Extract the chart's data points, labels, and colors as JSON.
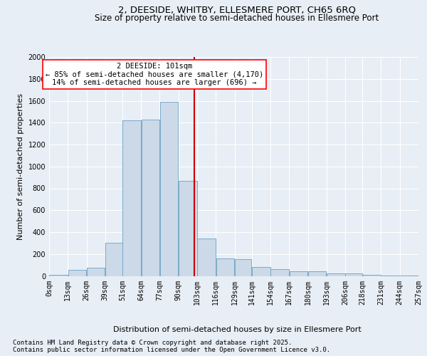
{
  "title": "2, DEESIDE, WHITBY, ELLESMERE PORT, CH65 6RQ",
  "subtitle": "Size of property relative to semi-detached houses in Ellesmere Port",
  "xlabel": "Distribution of semi-detached houses by size in Ellesmere Port",
  "ylabel": "Number of semi-detached properties",
  "footer_line1": "Contains HM Land Registry data © Crown copyright and database right 2025.",
  "footer_line2": "Contains public sector information licensed under the Open Government Licence v3.0.",
  "annotation_title": "2 DEESIDE: 101sqm",
  "annotation_line1": "← 85% of semi-detached houses are smaller (4,170)",
  "annotation_line2": "14% of semi-detached houses are larger (696) →",
  "bar_left_edges": [
    0,
    13,
    26,
    39,
    51,
    64,
    77,
    90,
    103,
    116,
    129,
    141,
    154,
    167,
    180,
    193,
    206,
    218,
    231,
    244
  ],
  "bar_widths": [
    13,
    13,
    13,
    12,
    13,
    13,
    13,
    13,
    13,
    13,
    12,
    13,
    13,
    13,
    13,
    13,
    12,
    13,
    13,
    13
  ],
  "bar_heights": [
    8,
    55,
    75,
    305,
    1420,
    1430,
    1590,
    870,
    340,
    160,
    155,
    80,
    60,
    45,
    40,
    25,
    20,
    10,
    2,
    2
  ],
  "bar_facecolor": "#ccd9e8",
  "bar_edgecolor": "#7aaac8",
  "vline_color": "#cc0000",
  "vline_x": 101,
  "ylim": [
    0,
    2000
  ],
  "yticks": [
    0,
    200,
    400,
    600,
    800,
    1000,
    1200,
    1400,
    1600,
    1800,
    2000
  ],
  "tick_labels": [
    "0sqm",
    "13sqm",
    "26sqm",
    "39sqm",
    "51sqm",
    "64sqm",
    "77sqm",
    "90sqm",
    "103sqm",
    "116sqm",
    "129sqm",
    "141sqm",
    "154sqm",
    "167sqm",
    "180sqm",
    "193sqm",
    "206sqm",
    "218sqm",
    "231sqm",
    "244sqm",
    "257sqm"
  ],
  "background_color": "#e8eef5",
  "plot_background": "#e8eef5",
  "grid_color": "#ffffff",
  "title_fontsize": 9.5,
  "subtitle_fontsize": 8.5,
  "axis_label_fontsize": 8,
  "tick_fontsize": 7,
  "footer_fontsize": 6.5,
  "annotation_fontsize": 7.5
}
